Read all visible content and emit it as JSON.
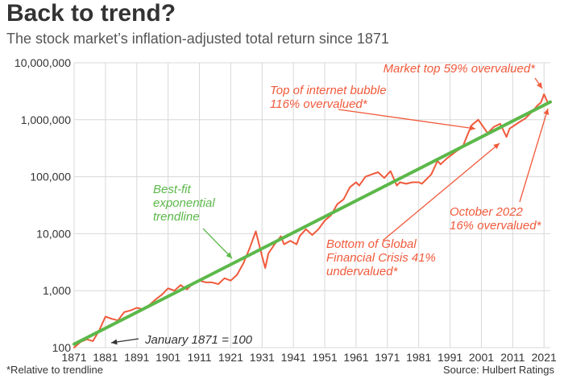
{
  "title": "Back to trend?",
  "subtitle": "The stock market’s inflation-adjusted total return since 1871",
  "footnote": "*Relative to trendline",
  "source": "Source: Hulbert Ratings",
  "colors": {
    "market": "#f05a3c",
    "trend": "#5cb84a",
    "grid": "#d8d8d8",
    "note_black": "#111111"
  },
  "chart_data": {
    "type": "line",
    "y_scale": "log",
    "ylim": [
      100,
      10000000
    ],
    "xlim": [
      1871,
      2023
    ],
    "y_ticks": [
      {
        "value": 100,
        "label": "100"
      },
      {
        "value": 1000,
        "label": "1,000"
      },
      {
        "value": 10000,
        "label": "10,000"
      },
      {
        "value": 100000,
        "label": "100,000"
      },
      {
        "value": 1000000,
        "label": "1,000,000"
      },
      {
        "value": 10000000,
        "label": "10,000,000"
      }
    ],
    "x_ticks": [
      1871,
      1881,
      1891,
      1901,
      1911,
      1921,
      1931,
      1941,
      1951,
      1961,
      1971,
      1981,
      1991,
      2001,
      2011,
      2021
    ],
    "grid": true,
    "series": [
      {
        "kind": "market",
        "x": [
          1871,
          1873,
          1875,
          1877,
          1879,
          1881,
          1883,
          1885,
          1887,
          1889,
          1891,
          1893,
          1895,
          1897,
          1899,
          1901,
          1903,
          1905,
          1907,
          1909,
          1911,
          1913,
          1915,
          1917,
          1919,
          1921,
          1923,
          1925,
          1927,
          1929,
          1931,
          1932,
          1933,
          1935,
          1937,
          1938,
          1940,
          1942,
          1943,
          1945,
          1947,
          1949,
          1951,
          1953,
          1955,
          1957,
          1959,
          1961,
          1962,
          1964,
          1966,
          1968,
          1970,
          1972,
          1974,
          1975,
          1977,
          1979,
          1981,
          1982,
          1985,
          1987,
          1988,
          1990,
          1993,
          1995,
          1997,
          1998,
          2000,
          2002,
          2003,
          2005,
          2007,
          2009,
          2010,
          2013,
          2015,
          2017,
          2019,
          2020,
          2021,
          2022
        ],
        "y": [
          100,
          125,
          140,
          130,
          200,
          350,
          320,
          300,
          420,
          450,
          500,
          470,
          560,
          700,
          850,
          1100,
          1000,
          1250,
          1050,
          1350,
          1500,
          1400,
          1400,
          1300,
          1650,
          1500,
          1900,
          3000,
          5500,
          11000,
          4000,
          2500,
          4500,
          6500,
          9000,
          6500,
          7500,
          6500,
          9000,
          12000,
          9500,
          12000,
          17000,
          21000,
          33000,
          40000,
          65000,
          80000,
          70000,
          100000,
          110000,
          120000,
          95000,
          125000,
          70000,
          80000,
          75000,
          80000,
          80000,
          75000,
          110000,
          190000,
          165000,
          210000,
          280000,
          330000,
          620000,
          810000,
          1000000,
          700000,
          580000,
          750000,
          850000,
          500000,
          700000,
          900000,
          1050000,
          1350000,
          1800000,
          2000000,
          2800000,
          2100000
        ]
      },
      {
        "kind": "trend",
        "x": [
          1871,
          2023
        ],
        "y": [
          115,
          2050000
        ]
      }
    ],
    "annotations": [
      {
        "id": "market-top",
        "lines": [
          "Market top 59% overvalued*"
        ],
        "x": 2021.5,
        "y": 2800000
      },
      {
        "id": "internet-bubble",
        "lines": [
          "Top of internet bubble",
          "116% overvalued*"
        ],
        "x": 2000,
        "y": 1000000
      },
      {
        "id": "best-fit",
        "lines": [
          "Best-fit",
          "exponential",
          "trendline"
        ],
        "x": 1922,
        "y": 2600
      },
      {
        "id": "october-2022",
        "lines": [
          "October 2022",
          "16% overvalued*"
        ],
        "x": 2022,
        "y": 2100000
      },
      {
        "id": "gfc-bottom",
        "lines": [
          "Bottom of Global",
          "Financial Crisis 41%",
          "undervalued*"
        ],
        "x": 2009,
        "y": 500000
      },
      {
        "id": "january-1871",
        "lines": [
          "January 1871 = 100"
        ],
        "x": 1880,
        "y": 115
      }
    ]
  }
}
